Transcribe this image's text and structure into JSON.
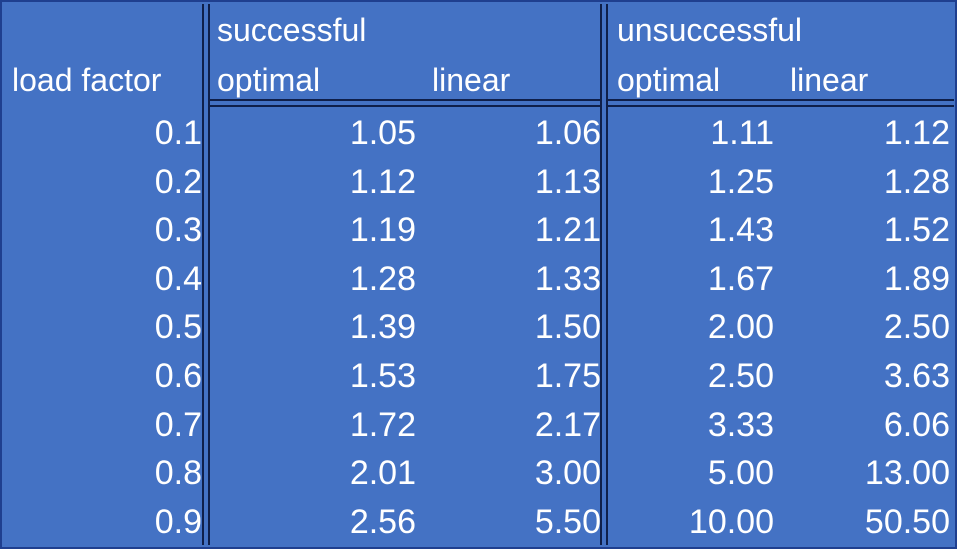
{
  "chart_data": {
    "type": "table",
    "group_headers": [
      "successful",
      "unsuccessful"
    ],
    "column_headers": [
      "load factor",
      "optimal",
      "linear",
      "optimal",
      "linear"
    ],
    "rows": [
      [
        "0.1",
        "1.05",
        "1.06",
        "1.11",
        "1.12"
      ],
      [
        "0.2",
        "1.12",
        "1.13",
        "1.25",
        "1.28"
      ],
      [
        "0.3",
        "1.19",
        "1.21",
        "1.43",
        "1.52"
      ],
      [
        "0.4",
        "1.28",
        "1.33",
        "1.67",
        "1.89"
      ],
      [
        "0.5",
        "1.39",
        "1.50",
        "2.00",
        "2.50"
      ],
      [
        "0.6",
        "1.53",
        "1.75",
        "2.50",
        "3.63"
      ],
      [
        "0.7",
        "1.72",
        "2.17",
        "3.33",
        "6.06"
      ],
      [
        "0.8",
        "2.01",
        "3.00",
        "5.00",
        "13.00"
      ],
      [
        "0.9",
        "2.56",
        "5.50",
        "10.00",
        "50.50"
      ]
    ]
  },
  "colors": {
    "background": "#4472C4",
    "text": "#FFFFFF",
    "rule": "#0F1F4A"
  }
}
